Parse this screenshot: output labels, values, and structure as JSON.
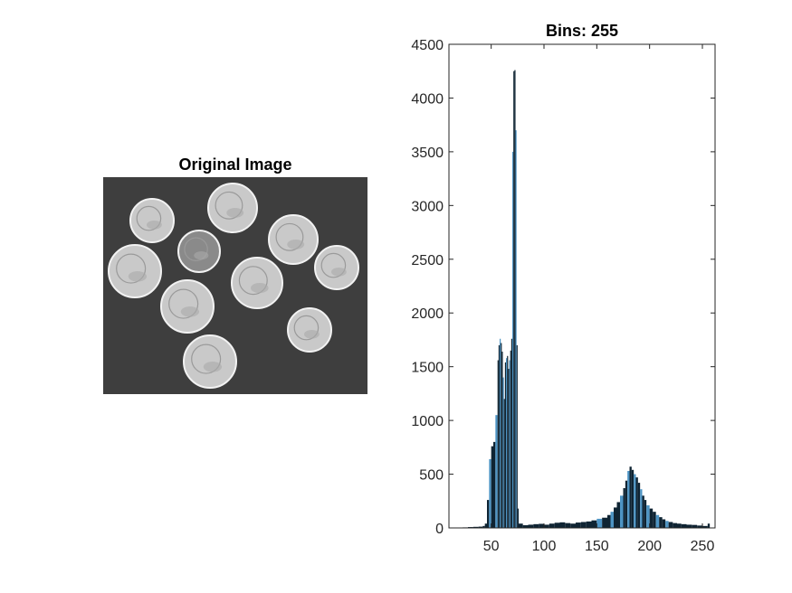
{
  "figure": {
    "image_title": "Original Image",
    "image_palette": {
      "background": "#3e3e3e",
      "coin_fill": "#c9c9c9",
      "coin_edge": "#f2f2f2",
      "dark_coin_fill": "#8a8a8a"
    },
    "coins": [
      {
        "kind": "dime"
      },
      {
        "kind": "nickel"
      },
      {
        "kind": "dime-dark"
      },
      {
        "kind": "nickel"
      },
      {
        "kind": "dime"
      },
      {
        "kind": "nickel"
      },
      {
        "kind": "nickel"
      },
      {
        "kind": "nickel"
      },
      {
        "kind": "dime"
      },
      {
        "kind": "nickel"
      }
    ]
  },
  "chart_data": {
    "type": "bar",
    "title": "Bins: 255",
    "xlabel": "",
    "ylabel": "",
    "xlim": [
      10,
      262
    ],
    "ylim": [
      0,
      4500
    ],
    "xticks": [
      50,
      100,
      150,
      200,
      250
    ],
    "yticks": [
      0,
      500,
      1000,
      1500,
      2000,
      2500,
      3000,
      3500,
      4000,
      4500
    ],
    "grid": false,
    "bar_color": "#0f2433",
    "highlight_color": "#4d94c4",
    "bins": {
      "x": [
        23,
        28,
        33,
        38,
        42,
        44,
        46,
        48,
        50,
        52,
        54,
        56,
        57,
        58,
        59,
        60,
        61,
        62,
        63,
        64,
        65,
        66,
        67,
        68,
        69,
        70,
        71,
        72,
        73,
        74,
        75,
        76,
        80,
        85,
        90,
        95,
        100,
        105,
        110,
        115,
        120,
        125,
        130,
        135,
        140,
        145,
        150,
        155,
        160,
        163,
        166,
        169,
        172,
        175,
        177,
        179,
        181,
        183,
        185,
        187,
        189,
        191,
        193,
        195,
        197,
        200,
        203,
        206,
        209,
        212,
        215,
        218,
        222,
        226,
        230,
        235,
        240,
        245,
        250,
        255
      ],
      "counts": [
        5,
        8,
        10,
        12,
        18,
        40,
        260,
        640,
        760,
        800,
        1050,
        1560,
        1700,
        1760,
        1720,
        1640,
        1400,
        1200,
        1540,
        1580,
        1600,
        1480,
        1560,
        1650,
        1760,
        3500,
        4250,
        4260,
        3700,
        1700,
        180,
        40,
        25,
        30,
        35,
        38,
        30,
        40,
        48,
        52,
        45,
        40,
        50,
        55,
        60,
        70,
        85,
        95,
        120,
        150,
        190,
        240,
        300,
        370,
        440,
        530,
        570,
        540,
        500,
        470,
        420,
        360,
        300,
        260,
        210,
        180,
        150,
        120,
        100,
        80,
        65,
        55,
        45,
        40,
        35,
        30,
        28,
        22,
        18,
        40
      ]
    }
  }
}
